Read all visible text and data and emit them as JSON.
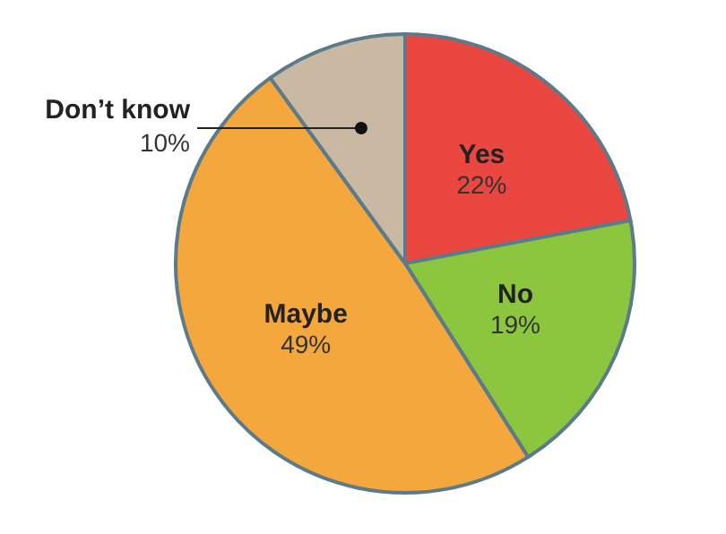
{
  "chart_data": {
    "type": "pie",
    "categories": [
      "Yes",
      "No",
      "Maybe",
      "Don’t know"
    ],
    "values": [
      22,
      19,
      49,
      10
    ],
    "value_labels": [
      "22%",
      "19%",
      "49%",
      "10%"
    ],
    "colors": [
      "#e9473f",
      "#8cc63f",
      "#f3a73c",
      "#c9b9a3"
    ],
    "legend": false
  }
}
